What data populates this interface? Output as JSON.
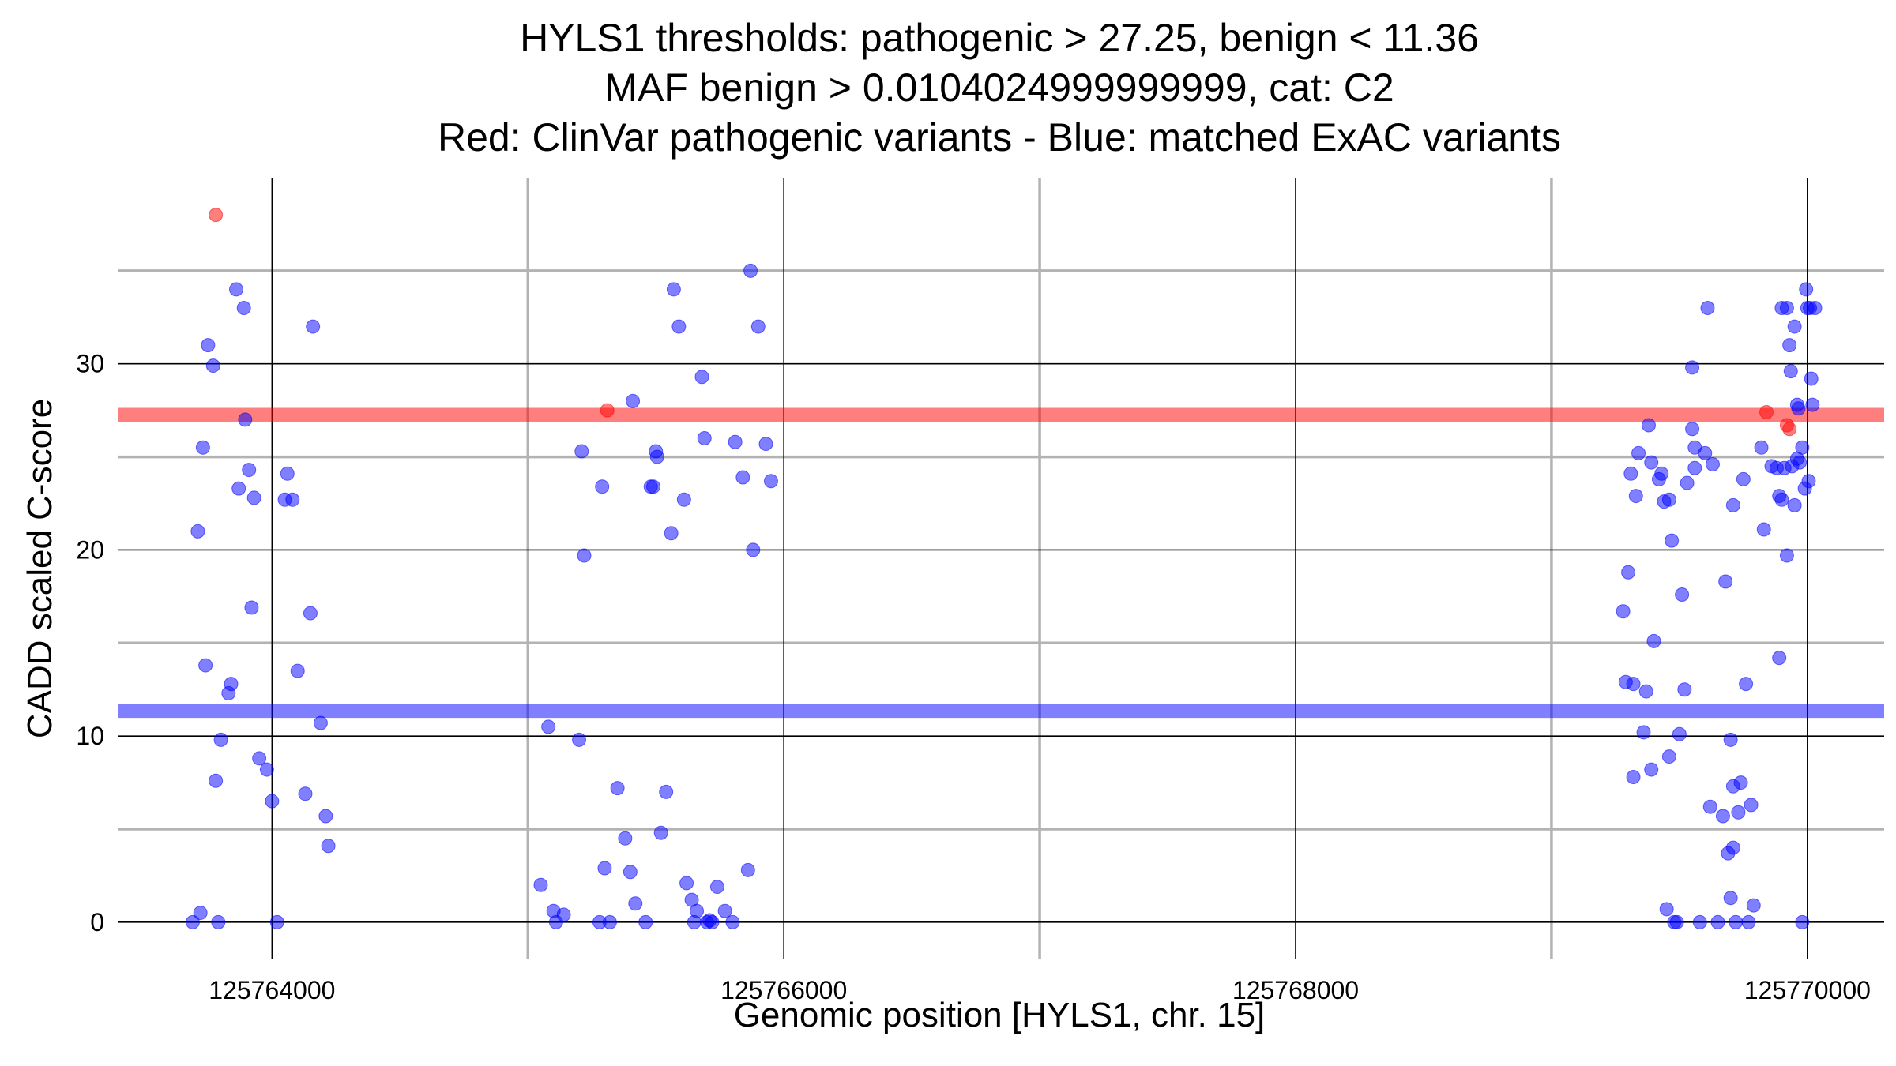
{
  "chart_data": {
    "type": "scatter",
    "title_lines": [
      "HYLS1 thresholds: pathogenic > 27.25, benign < 11.36",
      "MAF benign > 0.0104024999999999, cat: C2",
      "Red: ClinVar pathogenic variants - Blue: matched ExAC variants"
    ],
    "xlabel": "Genomic position [HYLS1, chr. 15]",
    "ylabel": "CADD scaled C-score",
    "xlim": [
      125763400,
      125770300
    ],
    "ylim": [
      -2,
      40
    ],
    "x_major_ticks": [
      125764000,
      125766000,
      125768000,
      125770000
    ],
    "x_minor_ticks": [
      125765000,
      125767000,
      125769000
    ],
    "x_tick_labels": [
      "125764000",
      "125766000",
      "125768000",
      "125770000"
    ],
    "y_major_ticks": [
      0,
      10,
      20,
      30
    ],
    "y_minor_ticks": [
      5,
      15,
      25,
      35
    ],
    "y_tick_labels": [
      "0",
      "10",
      "20",
      "30"
    ],
    "grid": true,
    "thresholds": [
      {
        "kind": "pathogenic",
        "value": 27.25,
        "color": "#ff0000"
      },
      {
        "kind": "benign",
        "value": 11.36,
        "color": "#0000ff"
      }
    ],
    "series": [
      {
        "color": "#ff0000",
        "points": [
          [
            125763780,
            38
          ],
          [
            125765310,
            27.5
          ],
          [
            125769840,
            27.4
          ],
          [
            125769920,
            26.7
          ],
          [
            125769930,
            26.5
          ]
        ]
      },
      {
        "color": "#0000ff",
        "points": [
          [
            125763710,
            21
          ],
          [
            125763730,
            25.5
          ],
          [
            125763750,
            31
          ],
          [
            125763770,
            29.9
          ],
          [
            125763860,
            34
          ],
          [
            125763890,
            33
          ],
          [
            125763895,
            27
          ],
          [
            125763910,
            24.3
          ],
          [
            125763870,
            23.3
          ],
          [
            125763930,
            22.8
          ],
          [
            125763920,
            16.9
          ],
          [
            125763740,
            13.8
          ],
          [
            125763840,
            12.8
          ],
          [
            125763830,
            12.3
          ],
          [
            125763800,
            9.8
          ],
          [
            125763780,
            7.6
          ],
          [
            125763950,
            8.8
          ],
          [
            125763980,
            8.2
          ],
          [
            125764000,
            6.5
          ],
          [
            125763720,
            0.5
          ],
          [
            125763690,
            0
          ],
          [
            125763790,
            0
          ],
          [
            125764020,
            0
          ],
          [
            125764060,
            24.1
          ],
          [
            125764050,
            22.7
          ],
          [
            125764080,
            22.7
          ],
          [
            125764160,
            32
          ],
          [
            125764150,
            16.6
          ],
          [
            125764100,
            13.5
          ],
          [
            125764190,
            10.7
          ],
          [
            125764130,
            6.9
          ],
          [
            125764210,
            5.7
          ],
          [
            125764220,
            4.1
          ],
          [
            125765080,
            10.5
          ],
          [
            125765200,
            9.8
          ],
          [
            125765050,
            2
          ],
          [
            125765100,
            0.6
          ],
          [
            125765140,
            0.4
          ],
          [
            125765110,
            0
          ],
          [
            125765210,
            25.3
          ],
          [
            125765220,
            19.7
          ],
          [
            125765290,
            23.4
          ],
          [
            125765300,
            2.9
          ],
          [
            125765280,
            0
          ],
          [
            125765320,
            0
          ],
          [
            125765350,
            7.2
          ],
          [
            125765380,
            4.5
          ],
          [
            125765400,
            2.7
          ],
          [
            125765420,
            1
          ],
          [
            125765410,
            28
          ],
          [
            125765460,
            0
          ],
          [
            125765480,
            23.4
          ],
          [
            125765490,
            23.4
          ],
          [
            125765500,
            25.3
          ],
          [
            125765505,
            25
          ],
          [
            125765520,
            4.8
          ],
          [
            125765540,
            7
          ],
          [
            125765560,
            20.9
          ],
          [
            125765570,
            34
          ],
          [
            125765590,
            32
          ],
          [
            125765610,
            22.7
          ],
          [
            125765620,
            2.1
          ],
          [
            125765640,
            1.2
          ],
          [
            125765660,
            0.6
          ],
          [
            125765650,
            0
          ],
          [
            125765680,
            29.3
          ],
          [
            125765690,
            26
          ],
          [
            125765700,
            0
          ],
          [
            125765710,
            0.1
          ],
          [
            125765720,
            0
          ],
          [
            125765740,
            1.9
          ],
          [
            125765770,
            0.6
          ],
          [
            125765800,
            0
          ],
          [
            125765810,
            25.8
          ],
          [
            125765840,
            23.9
          ],
          [
            125765860,
            2.8
          ],
          [
            125765870,
            35
          ],
          [
            125765880,
            20
          ],
          [
            125765900,
            32
          ],
          [
            125765930,
            25.7
          ],
          [
            125765950,
            23.7
          ],
          [
            125769280,
            16.7
          ],
          [
            125769290,
            12.9
          ],
          [
            125769300,
            18.8
          ],
          [
            125769310,
            24.1
          ],
          [
            125769320,
            12.8
          ],
          [
            125769330,
            22.9
          ],
          [
            125769320,
            7.8
          ],
          [
            125769340,
            25.2
          ],
          [
            125769360,
            10.2
          ],
          [
            125769370,
            12.4
          ],
          [
            125769380,
            26.7
          ],
          [
            125769390,
            8.2
          ],
          [
            125769400,
            15.1
          ],
          [
            125769390,
            24.7
          ],
          [
            125769420,
            23.8
          ],
          [
            125769430,
            24.1
          ],
          [
            125769440,
            22.6
          ],
          [
            125769460,
            22.7
          ],
          [
            125769470,
            20.5
          ],
          [
            125769450,
            0.7
          ],
          [
            125769460,
            8.9
          ],
          [
            125769480,
            0
          ],
          [
            125769490,
            0
          ],
          [
            125769500,
            10.1
          ],
          [
            125769510,
            17.6
          ],
          [
            125769520,
            12.5
          ],
          [
            125769530,
            23.6
          ],
          [
            125769550,
            26.5
          ],
          [
            125769560,
            25.5
          ],
          [
            125769560,
            24.4
          ],
          [
            125769550,
            29.8
          ],
          [
            125769580,
            0
          ],
          [
            125769600,
            25.2
          ],
          [
            125769610,
            33
          ],
          [
            125769630,
            24.6
          ],
          [
            125769620,
            6.2
          ],
          [
            125769650,
            0
          ],
          [
            125769670,
            5.7
          ],
          [
            125769680,
            18.3
          ],
          [
            125769690,
            3.7
          ],
          [
            125769700,
            9.8
          ],
          [
            125769710,
            4
          ],
          [
            125769710,
            7.3
          ],
          [
            125769700,
            1.3
          ],
          [
            125769710,
            22.4
          ],
          [
            125769720,
            0
          ],
          [
            125769730,
            5.9
          ],
          [
            125769740,
            7.5
          ],
          [
            125769750,
            23.8
          ],
          [
            125769760,
            12.8
          ],
          [
            125769770,
            0
          ],
          [
            125769780,
            6.3
          ],
          [
            125769790,
            0.9
          ],
          [
            125769820,
            25.5
          ],
          [
            125769830,
            21.1
          ],
          [
            125769860,
            24.5
          ],
          [
            125769880,
            24.4
          ],
          [
            125769890,
            14.2
          ],
          [
            125769890,
            22.9
          ],
          [
            125769900,
            33
          ],
          [
            125769900,
            22.7
          ],
          [
            125769910,
            24.4
          ],
          [
            125769920,
            33
          ],
          [
            125769920,
            19.7
          ],
          [
            125769930,
            31
          ],
          [
            125769935,
            29.6
          ],
          [
            125769940,
            24.5
          ],
          [
            125769950,
            32
          ],
          [
            125769950,
            22.4
          ],
          [
            125769960,
            24.9
          ],
          [
            125769960,
            27.8
          ],
          [
            125769965,
            27.6
          ],
          [
            125769970,
            24.7
          ],
          [
            125769980,
            25.5
          ],
          [
            125769980,
            0
          ],
          [
            125769990,
            23.3
          ],
          [
            125769995,
            34
          ],
          [
            125770000,
            33
          ],
          [
            125770005,
            23.7
          ],
          [
            125770010,
            33
          ],
          [
            125770015,
            29.2
          ],
          [
            125770020,
            27.8
          ],
          [
            125770030,
            33
          ]
        ]
      }
    ]
  }
}
